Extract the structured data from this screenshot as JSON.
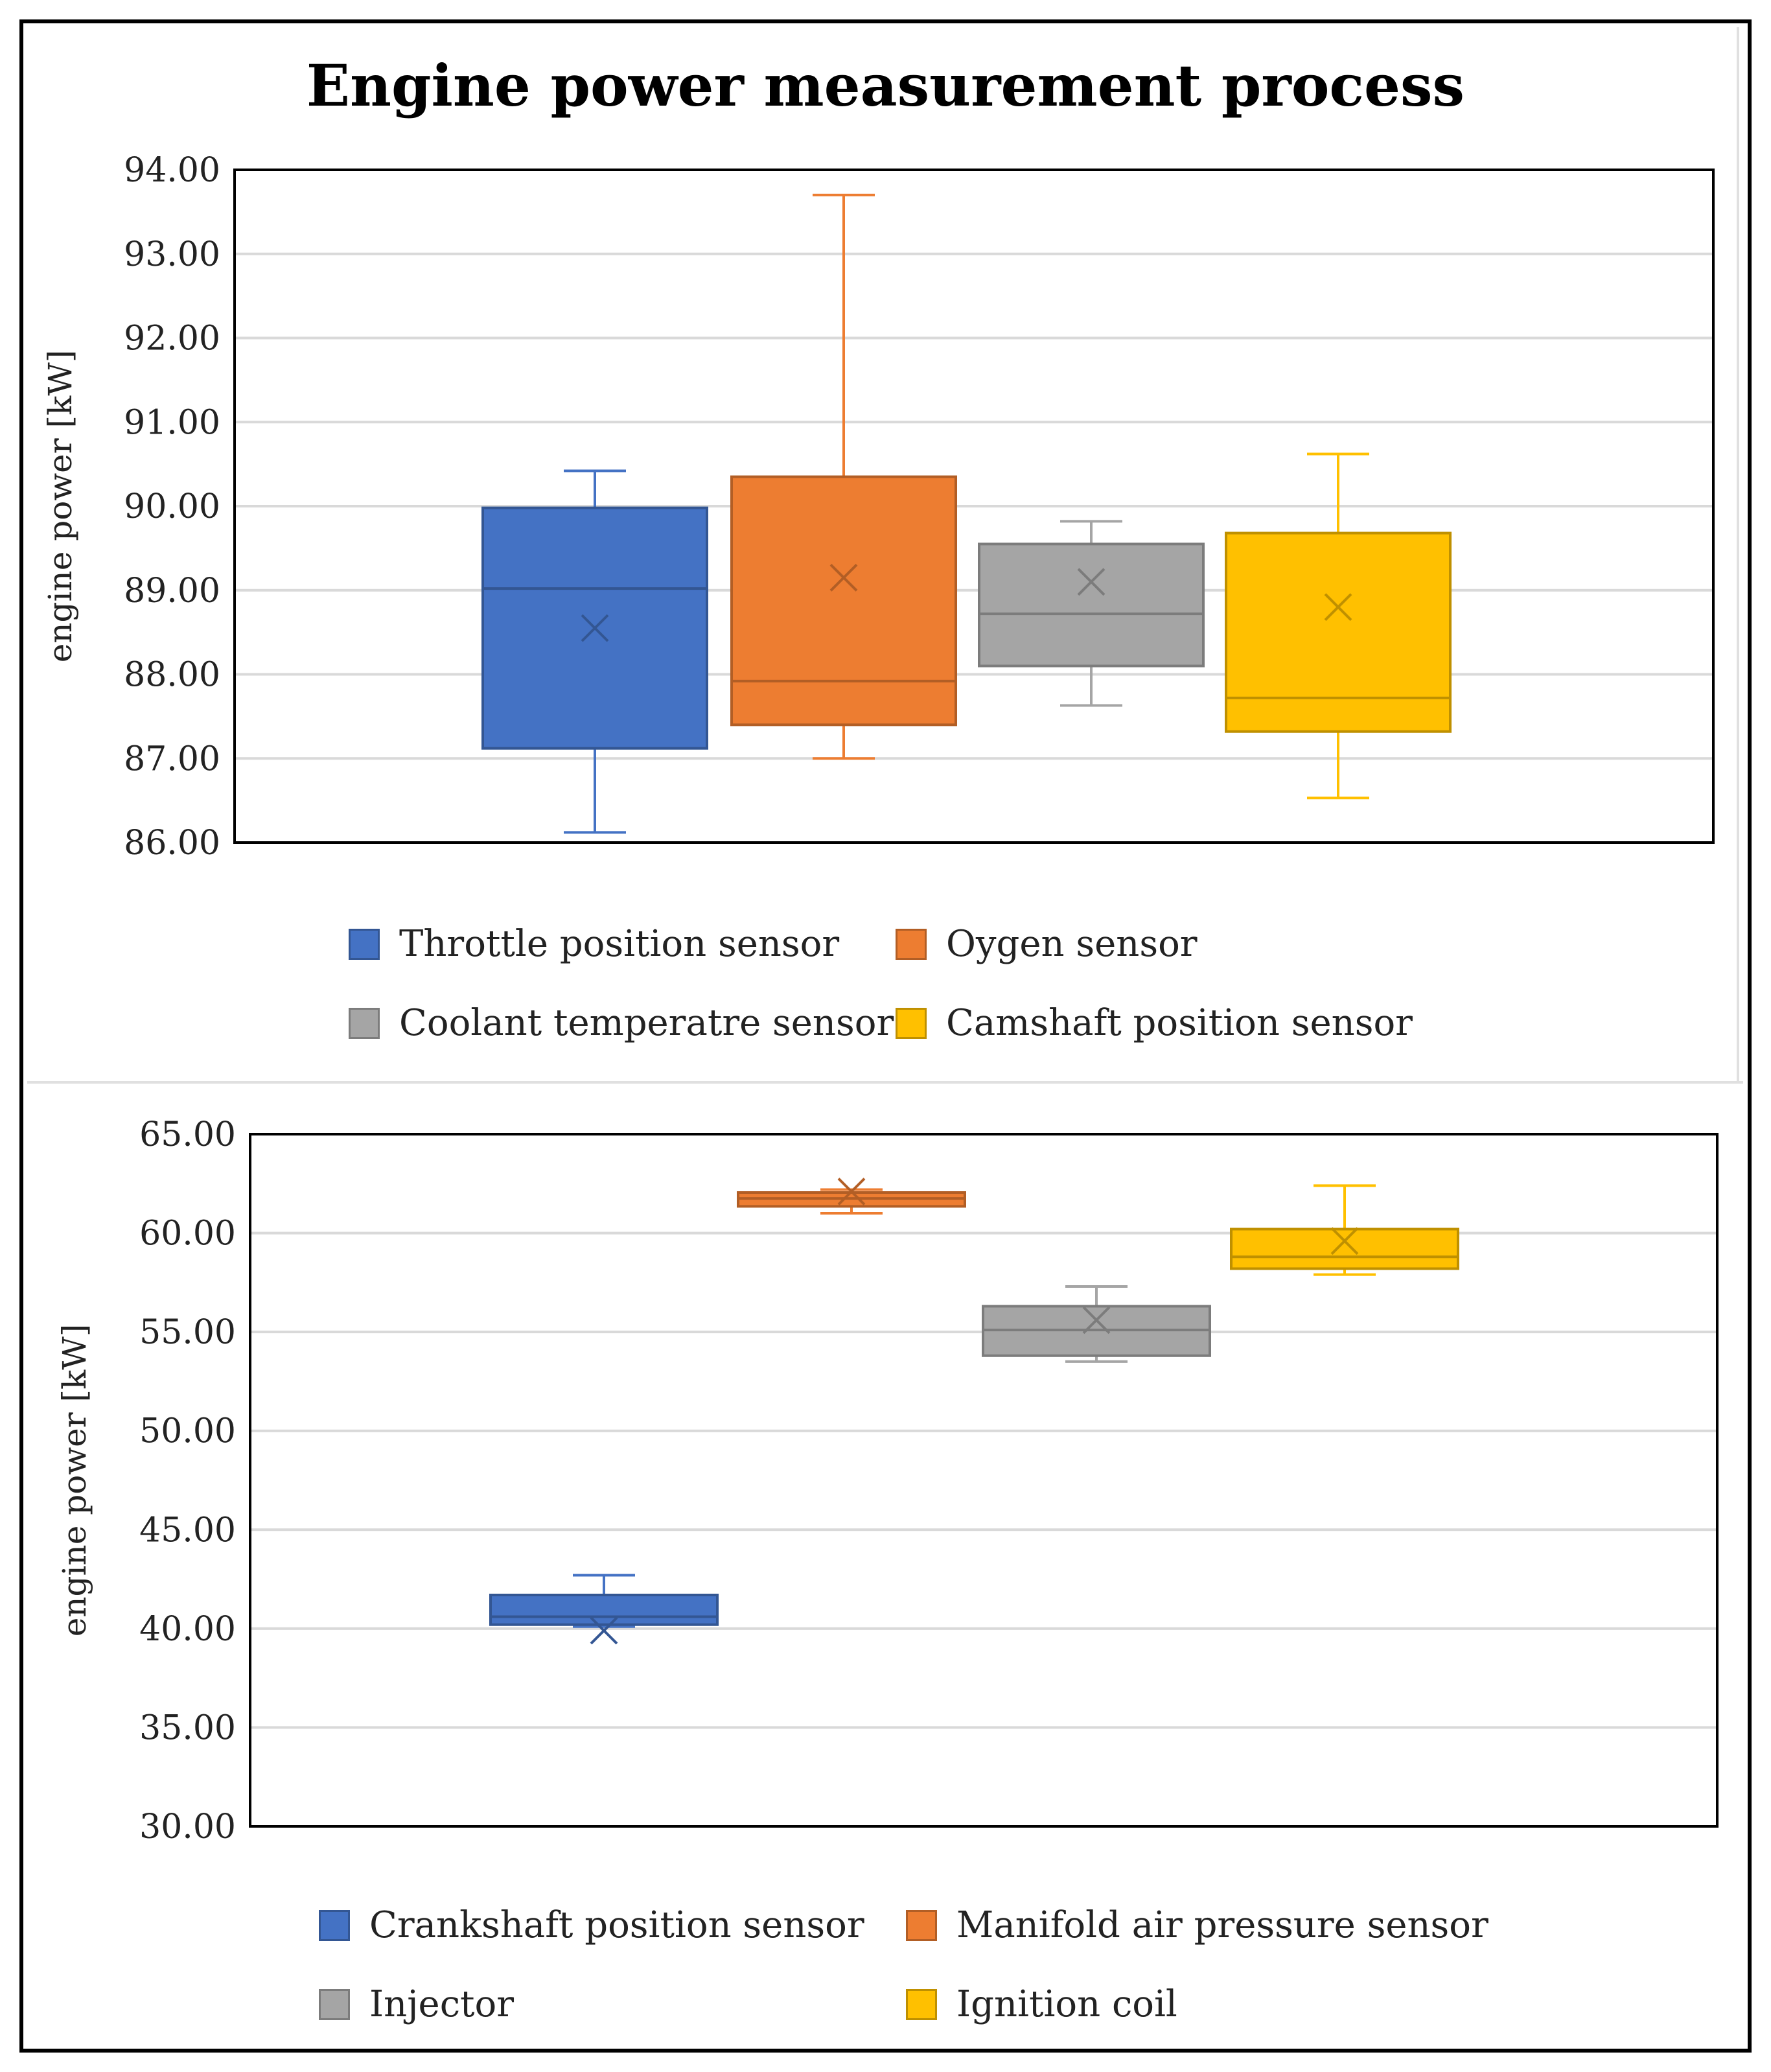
{
  "chart_data": [
    {
      "type": "boxplot",
      "title": "Engine power measurement process",
      "ylabel": "engine power [kW]",
      "xlabel": "",
      "ylim": [
        86,
        94
      ],
      "yticks": [
        "86.00",
        "87.00",
        "88.00",
        "89.00",
        "90.00",
        "91.00",
        "92.00",
        "93.00",
        "94.00"
      ],
      "grid": true,
      "legend_position": "bottom",
      "series": [
        {
          "name": "Throttle position sensor",
          "color": "#4472C4",
          "whisker_low": 86.12,
          "q1": 87.12,
          "median": 89.02,
          "q3": 89.98,
          "whisker_high": 90.42,
          "mean": 88.55
        },
        {
          "name": "Oygen sensor",
          "color": "#ED7D31",
          "whisker_low": 87.0,
          "q1": 87.4,
          "median": 87.92,
          "q3": 90.35,
          "whisker_high": 93.7,
          "mean": 89.15
        },
        {
          "name": "Coolant temperatre sensor",
          "color": "#A5A5A5",
          "whisker_low": 87.63,
          "q1": 88.1,
          "median": 88.72,
          "q3": 89.55,
          "whisker_high": 89.82,
          "mean": 89.1
        },
        {
          "name": "Camshaft position sensor",
          "color": "#FFC000",
          "whisker_low": 86.53,
          "q1": 87.32,
          "median": 87.72,
          "q3": 89.68,
          "whisker_high": 90.62,
          "mean": 88.8
        }
      ]
    },
    {
      "type": "boxplot",
      "title": "",
      "ylabel": "engine power [kW]",
      "xlabel": "",
      "ylim": [
        30,
        65
      ],
      "yticks": [
        "30.00",
        "35.00",
        "40.00",
        "45.00",
        "50.00",
        "55.00",
        "60.00",
        "65.00"
      ],
      "grid": true,
      "legend_position": "bottom",
      "series": [
        {
          "name": "Crankshaft position sensor",
          "color": "#4472C4",
          "whisker_low": 40.1,
          "q1": 40.2,
          "median": 40.6,
          "q3": 41.7,
          "whisker_high": 42.7,
          "mean": 39.9
        },
        {
          "name": "Manifold air pressure sensor",
          "color": "#ED7D31",
          "whisker_low": 61.0,
          "q1": 61.35,
          "median": 61.75,
          "q3": 62.05,
          "whisker_high": 62.2,
          "mean": 62.1
        },
        {
          "name": "Injector",
          "color": "#A5A5A5",
          "whisker_low": 53.5,
          "q1": 53.8,
          "median": 55.1,
          "q3": 56.3,
          "whisker_high": 57.3,
          "mean": 55.6
        },
        {
          "name": "Ignition coil",
          "color": "#FFC000",
          "whisker_low": 57.9,
          "q1": 58.2,
          "median": 58.8,
          "q3": 60.2,
          "whisker_high": 62.4,
          "mean": 59.6
        }
      ]
    }
  ]
}
